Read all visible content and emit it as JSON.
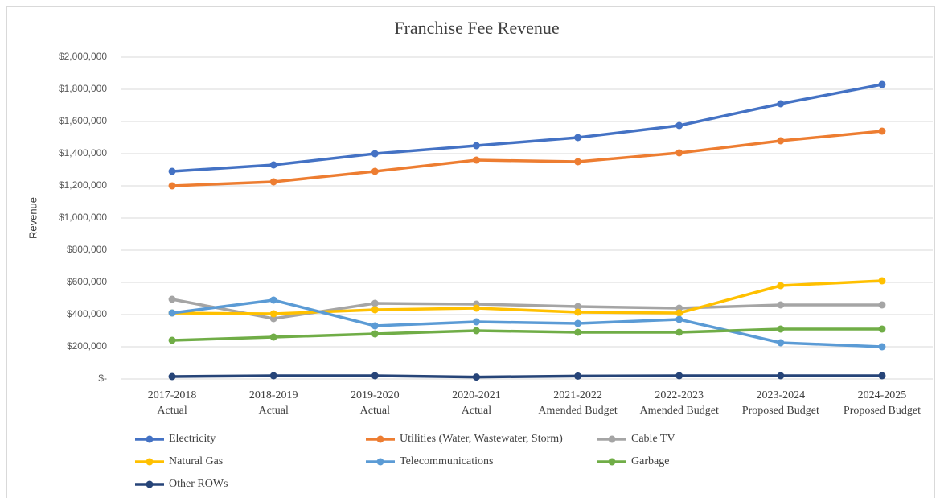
{
  "chart_data": {
    "type": "line",
    "title": "Franchise Fee Revenue",
    "y_label": "Revenue",
    "categories": [
      [
        "2017-2018",
        "Actual"
      ],
      [
        "2018-2019",
        "Actual"
      ],
      [
        "2019-2020",
        "Actual"
      ],
      [
        "2020-2021",
        "Actual"
      ],
      [
        "2021-2022",
        "Amended Budget"
      ],
      [
        "2022-2023",
        "Amended Budget"
      ],
      [
        "2023-2024",
        "Proposed Budget"
      ],
      [
        "2024-2025",
        "Proposed Budget"
      ]
    ],
    "series": [
      {
        "name": "Electricity",
        "color": "#4472c4",
        "values": [
          1290000,
          1330000,
          1400000,
          1450000,
          1500000,
          1575000,
          1710000,
          1830000
        ]
      },
      {
        "name": "Utilities (Water, Wastewater, Storm)",
        "color": "#ed7d31",
        "values": [
          1200000,
          1225000,
          1290000,
          1360000,
          1350000,
          1405000,
          1480000,
          1540000
        ]
      },
      {
        "name": "Cable TV",
        "color": "#a5a5a5",
        "values": [
          495000,
          375000,
          470000,
          465000,
          450000,
          440000,
          460000,
          460000
        ]
      },
      {
        "name": "Natural Gas",
        "color": "#ffc000",
        "values": [
          410000,
          405000,
          430000,
          440000,
          415000,
          410000,
          580000,
          610000
        ]
      },
      {
        "name": "Telecommunications",
        "color": "#5b9bd5",
        "values": [
          410000,
          490000,
          330000,
          355000,
          345000,
          370000,
          225000,
          200000
        ]
      },
      {
        "name": "Garbage",
        "color": "#70ad47",
        "values": [
          240000,
          260000,
          280000,
          300000,
          290000,
          290000,
          310000,
          310000
        ]
      },
      {
        "name": "Other ROWs",
        "color": "#264478",
        "values": [
          15000,
          20000,
          20000,
          12000,
          18000,
          20000,
          20000,
          20000
        ]
      }
    ],
    "ylim": [
      0,
      2000000
    ],
    "yticks": [
      {
        "value": 0,
        "label": "$-"
      },
      {
        "value": 200000,
        "label": "$200,000"
      },
      {
        "value": 400000,
        "label": "$400,000"
      },
      {
        "value": 600000,
        "label": "$600,000"
      },
      {
        "value": 800000,
        "label": "$800,000"
      },
      {
        "value": 1000000,
        "label": "$1,000,000"
      },
      {
        "value": 1200000,
        "label": "$1,200,000"
      },
      {
        "value": 1400000,
        "label": "$1,400,000"
      },
      {
        "value": 1600000,
        "label": "$1,600,000"
      },
      {
        "value": 1800000,
        "label": "$1,800,000"
      },
      {
        "value": 2000000,
        "label": "$2,000,000"
      }
    ],
    "grid": true,
    "legend": "bottom"
  }
}
